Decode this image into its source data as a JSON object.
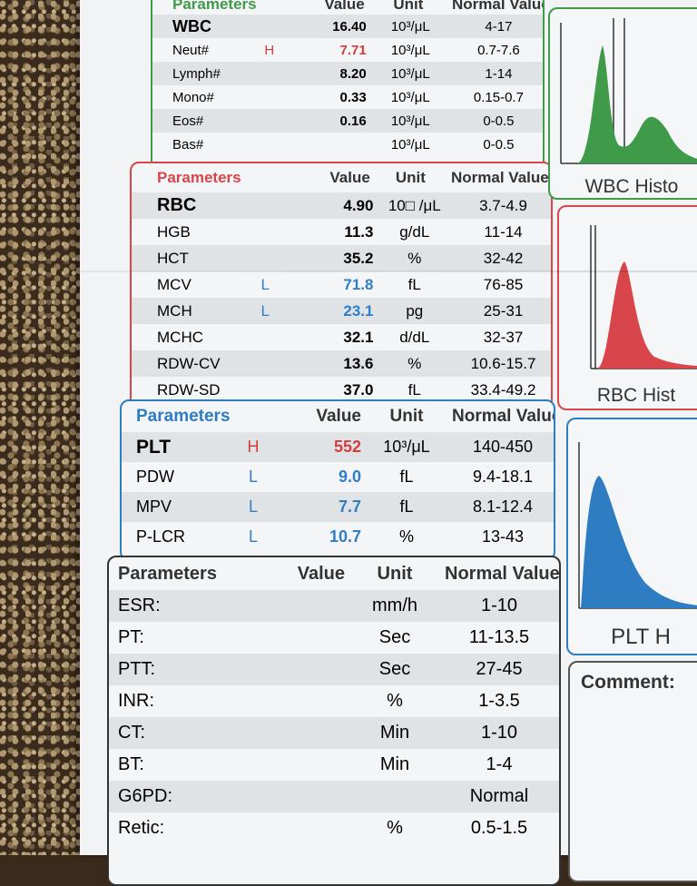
{
  "wbc": {
    "header": {
      "param": "Parameters",
      "value": "Value",
      "unit": "Unit",
      "normal": "Normal Values"
    },
    "rows": [
      {
        "name": "WBC",
        "flag": "",
        "value": "16.40",
        "unit": "10³/μL",
        "normal": "4-17"
      },
      {
        "name": "Neut#",
        "flag": "H",
        "value": "7.71",
        "unit": "10³/μL",
        "normal": "0.7-7.6"
      },
      {
        "name": "Lymph#",
        "flag": "",
        "value": "8.20",
        "unit": "10³/μL",
        "normal": "1-14"
      },
      {
        "name": "Mono#",
        "flag": "",
        "value": "0.33",
        "unit": "10³/μL",
        "normal": "0.15-0.7"
      },
      {
        "name": "Eos#",
        "flag": "",
        "value": "0.16",
        "unit": "10³/μL",
        "normal": "0-0.5"
      },
      {
        "name": "Bas#",
        "flag": "",
        "value": "",
        "unit": "10³/μL",
        "normal": "0-0.5"
      }
    ],
    "histogram_label": "WBC Histo"
  },
  "rbc": {
    "header": {
      "param": "Parameters",
      "value": "Value",
      "unit": "Unit",
      "normal": "Normal Values"
    },
    "rows": [
      {
        "name": "RBC",
        "flag": "",
        "value": "4.90",
        "unit": "10□ /μL",
        "normal": "3.7-4.9"
      },
      {
        "name": "HGB",
        "flag": "",
        "value": "11.3",
        "unit": "g/dL",
        "normal": "11-14"
      },
      {
        "name": "HCT",
        "flag": "",
        "value": "35.2",
        "unit": "%",
        "normal": "32-42"
      },
      {
        "name": "MCV",
        "flag": "L",
        "value": "71.8",
        "unit": "fL",
        "normal": "76-85"
      },
      {
        "name": "MCH",
        "flag": "L",
        "value": "23.1",
        "unit": "pg",
        "normal": "25-31"
      },
      {
        "name": "MCHC",
        "flag": "",
        "value": "32.1",
        "unit": "d/dL",
        "normal": "32-37"
      },
      {
        "name": "RDW-CV",
        "flag": "",
        "value": "13.6",
        "unit": "%",
        "normal": "10.6-15.7"
      },
      {
        "name": "RDW-SD",
        "flag": "",
        "value": "37.0",
        "unit": "fL",
        "normal": "33.4-49.2"
      }
    ],
    "histogram_label": "RBC Hist"
  },
  "plt": {
    "header": {
      "param": "Parameters",
      "value": "Value",
      "unit": "Unit",
      "normal": "Normal Values"
    },
    "rows": [
      {
        "name": "PLT",
        "flag": "H",
        "value": "552",
        "unit": "10³/μL",
        "normal": "140-450"
      },
      {
        "name": "PDW",
        "flag": "L",
        "value": "9.0",
        "unit": "fL",
        "normal": "9.4-18.1"
      },
      {
        "name": "MPV",
        "flag": "L",
        "value": "7.7",
        "unit": "fL",
        "normal": "8.1-12.4"
      },
      {
        "name": "P-LCR",
        "flag": "L",
        "value": "10.7",
        "unit": "%",
        "normal": "13-43"
      }
    ],
    "histogram_label": "PLT H"
  },
  "coag": {
    "header": {
      "param": "Parameters",
      "value": "Value",
      "unit": "Unit",
      "normal": "Normal Values"
    },
    "rows": [
      {
        "name": "ESR:",
        "value": "",
        "unit": "mm/h",
        "normal": "1-10"
      },
      {
        "name": "PT:",
        "value": "",
        "unit": "Sec",
        "normal": "11-13.5"
      },
      {
        "name": "PTT:",
        "value": "",
        "unit": "Sec",
        "normal": "27-45"
      },
      {
        "name": "INR:",
        "value": "",
        "unit": "%",
        "normal": "1-3.5"
      },
      {
        "name": "CT:",
        "value": "",
        "unit": "Min",
        "normal": "1-10"
      },
      {
        "name": "BT:",
        "value": "",
        "unit": "Min",
        "normal": "1-4"
      },
      {
        "name": "G6PD:",
        "value": "",
        "unit": "",
        "normal": "Normal"
      },
      {
        "name": "Retic:",
        "value": "",
        "unit": "%",
        "normal": "0.5-1.5"
      }
    ]
  },
  "comment": {
    "label": "Comment:"
  },
  "colors": {
    "wbc": "#3f9a4a",
    "rbc": "#d8454a",
    "plt": "#2e7cc1",
    "high": "#d43d3d",
    "low": "#2f7ec6"
  }
}
